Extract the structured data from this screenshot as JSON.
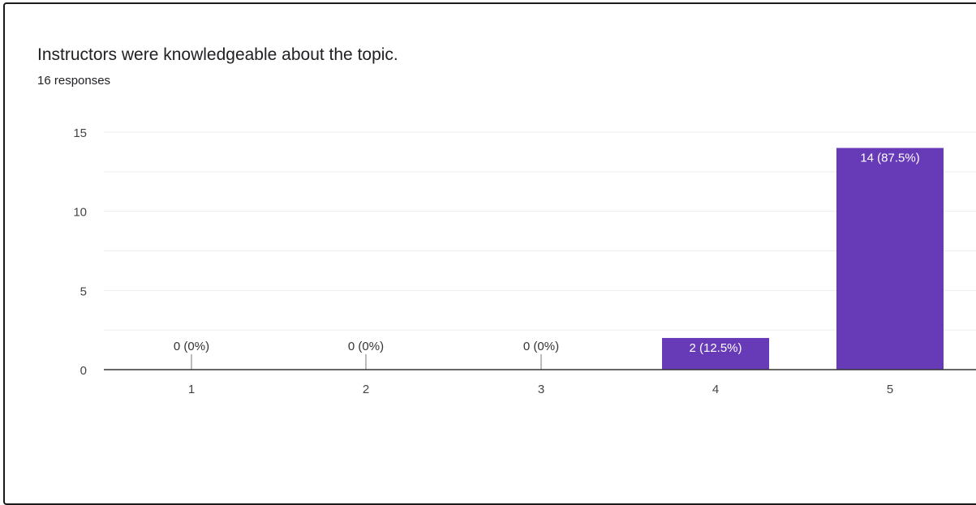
{
  "card": {
    "title": "Instructors were knowledgeable about the topic.",
    "subtitle": "16 responses"
  },
  "colors": {
    "bar": "#673ab7",
    "grid": "#eeeeee",
    "axis": "#333333",
    "text": "#444444"
  },
  "chart_data": {
    "type": "bar",
    "title": "Instructors were knowledgeable about the topic.",
    "subtitle": "16 responses",
    "categories": [
      "1",
      "2",
      "3",
      "4",
      "5"
    ],
    "values": [
      0,
      0,
      0,
      2,
      14
    ],
    "data_labels": [
      "0 (0%)",
      "0 (0%)",
      "0 (0%)",
      "2 (12.5%)",
      "14 (87.5%)"
    ],
    "yticks": [
      0,
      5,
      10,
      15
    ],
    "ylim": [
      0,
      15
    ],
    "xlabel": "",
    "ylabel": "",
    "grid": true,
    "legend": "none"
  }
}
